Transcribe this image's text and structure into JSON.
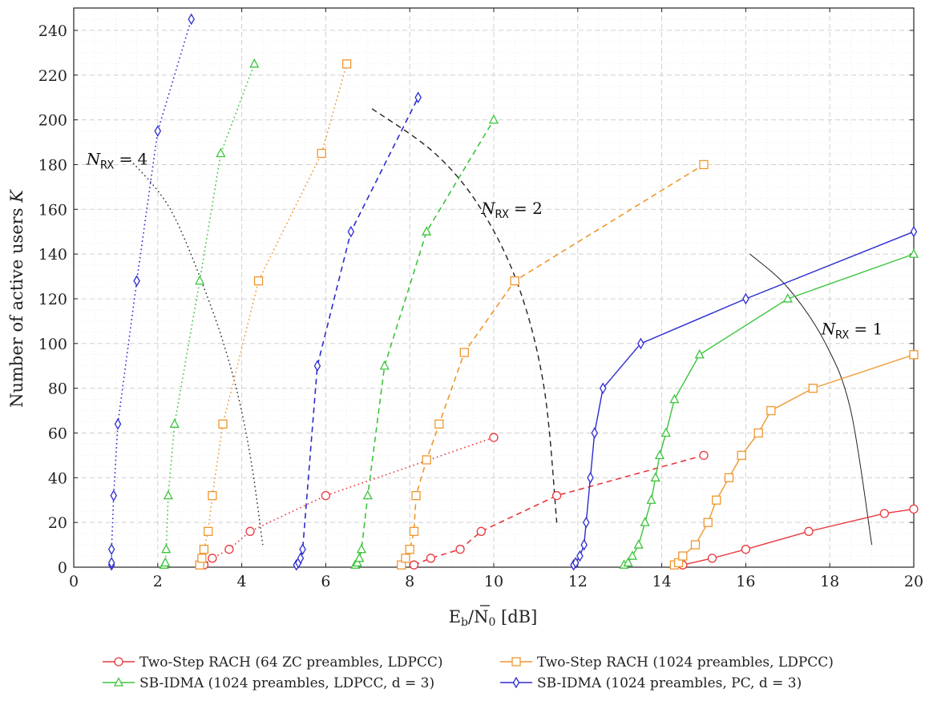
{
  "chart_data": {
    "type": "line",
    "xlabel": "Ē_b/N_0 [dB]",
    "ylabel": "Number of active users K",
    "xlim": [
      0,
      20
    ],
    "ylim": [
      0,
      250
    ],
    "x_ticks": [
      0,
      2,
      4,
      6,
      8,
      10,
      12,
      14,
      16,
      18,
      20
    ],
    "y_ticks": [
      0,
      20,
      40,
      60,
      80,
      100,
      120,
      140,
      160,
      180,
      200,
      220,
      240
    ],
    "grid": true,
    "legend_placement": "bottom",
    "colors": {
      "rach64": "#e8383d",
      "rach1024": "#f0962e",
      "sbidma_ldpc": "#3cc43c",
      "sbidma_pc": "#2b2bd0"
    },
    "legend": [
      {
        "label": "Two-Step RACH (64 ZC preambles, LDPCC)",
        "color": "#e8383d",
        "marker": "circle"
      },
      {
        "label": "Two-Step RACH (1024 preambles, LDPCC)",
        "color": "#f0962e",
        "marker": "square"
      },
      {
        "label": "SB-IDMA (1024 preambles, LDPCC, d = 3)",
        "color": "#3cc43c",
        "marker": "triangle"
      },
      {
        "label": "SB-IDMA (1024 preambles, PC, d = 3)",
        "color": "#2b2bd0",
        "marker": "diamond"
      }
    ],
    "annotations": [
      {
        "label": "N",
        "sub": "RX",
        "value": "= 4",
        "x": 0.3,
        "y": 180
      },
      {
        "label": "N",
        "sub": "RX",
        "value": "= 2",
        "x": 9.7,
        "y": 158
      },
      {
        "label": "N",
        "sub": "RX",
        "value": "= 1",
        "x": 17.8,
        "y": 104
      }
    ],
    "boundary_curves": [
      {
        "nrx": 4,
        "style": "dotted",
        "points": [
          [
            1.35,
            182
          ],
          [
            2.3,
            160
          ],
          [
            3.2,
            120
          ],
          [
            3.8,
            85
          ],
          [
            4.2,
            50
          ],
          [
            4.5,
            10
          ]
        ]
      },
      {
        "nrx": 2,
        "style": "dashed",
        "points": [
          [
            7.1,
            205
          ],
          [
            8.6,
            185
          ],
          [
            9.7,
            160
          ],
          [
            10.6,
            125
          ],
          [
            11.2,
            80
          ],
          [
            11.5,
            20
          ]
        ]
      },
      {
        "nrx": 1,
        "style": "solid",
        "points": [
          [
            16.1,
            140
          ],
          [
            17.0,
            125
          ],
          [
            17.9,
            100
          ],
          [
            18.5,
            70
          ],
          [
            19.0,
            10
          ]
        ]
      }
    ],
    "series": [
      {
        "name": "Two-Step RACH (64 ZC preambles, LDPCC)",
        "nrx": 1,
        "style": "solid",
        "color": "#e8383d",
        "marker": "circle",
        "points": [
          [
            14.5,
            1
          ],
          [
            15.2,
            4
          ],
          [
            16.0,
            8
          ],
          [
            17.5,
            16
          ],
          [
            19.3,
            24
          ],
          [
            20.0,
            26
          ]
        ]
      },
      {
        "name": "Two-Step RACH (64 ZC preambles, LDPCC)",
        "nrx": 2,
        "style": "dashed",
        "color": "#e8383d",
        "marker": "circle",
        "points": [
          [
            8.1,
            1
          ],
          [
            8.5,
            4
          ],
          [
            9.2,
            8
          ],
          [
            9.7,
            16
          ],
          [
            11.5,
            32
          ],
          [
            15.0,
            50
          ]
        ]
      },
      {
        "name": "Two-Step RACH (64 ZC preambles, LDPCC)",
        "nrx": 4,
        "style": "dotted",
        "color": "#e8383d",
        "marker": "circle",
        "points": [
          [
            3.1,
            1
          ],
          [
            3.3,
            4
          ],
          [
            3.7,
            8
          ],
          [
            4.2,
            16
          ],
          [
            6.0,
            32
          ],
          [
            10.0,
            58
          ]
        ]
      },
      {
        "name": "Two-Step RACH (1024 preambles, LDPCC)",
        "nrx": 1,
        "style": "solid",
        "color": "#f0962e",
        "marker": "square",
        "points": [
          [
            14.3,
            1
          ],
          [
            14.4,
            2
          ],
          [
            14.5,
            5
          ],
          [
            14.8,
            10
          ],
          [
            15.1,
            20
          ],
          [
            15.3,
            30
          ],
          [
            15.6,
            40
          ],
          [
            15.9,
            50
          ],
          [
            16.3,
            60
          ],
          [
            16.6,
            70
          ],
          [
            17.6,
            80
          ],
          [
            20.0,
            95
          ]
        ]
      },
      {
        "name": "Two-Step RACH (1024 preambles, LDPCC)",
        "nrx": 2,
        "style": "dashed",
        "color": "#f0962e",
        "marker": "square",
        "points": [
          [
            7.8,
            1
          ],
          [
            7.9,
            4
          ],
          [
            8.0,
            8
          ],
          [
            8.1,
            16
          ],
          [
            8.15,
            32
          ],
          [
            8.4,
            48
          ],
          [
            8.7,
            64
          ],
          [
            9.3,
            96
          ],
          [
            10.5,
            128
          ],
          [
            15.0,
            180
          ]
        ]
      },
      {
        "name": "Two-Step RACH (1024 preambles, LDPCC)",
        "nrx": 4,
        "style": "dotted",
        "color": "#f0962e",
        "marker": "square",
        "points": [
          [
            3.0,
            1
          ],
          [
            3.05,
            4
          ],
          [
            3.1,
            8
          ],
          [
            3.2,
            16
          ],
          [
            3.3,
            32
          ],
          [
            3.55,
            64
          ],
          [
            4.4,
            128
          ],
          [
            5.9,
            185
          ],
          [
            6.5,
            225
          ]
        ]
      },
      {
        "name": "SB-IDMA (1024 preambles, LDPCC, d = 3)",
        "nrx": 1,
        "style": "solid",
        "color": "#3cc43c",
        "marker": "triangle",
        "points": [
          [
            13.1,
            1
          ],
          [
            13.2,
            2
          ],
          [
            13.3,
            5
          ],
          [
            13.45,
            10
          ],
          [
            13.6,
            20
          ],
          [
            13.75,
            30
          ],
          [
            13.85,
            40
          ],
          [
            13.95,
            50
          ],
          [
            14.1,
            60
          ],
          [
            14.3,
            75
          ],
          [
            14.9,
            95
          ],
          [
            17.0,
            120
          ],
          [
            20.0,
            140
          ]
        ]
      },
      {
        "name": "SB-IDMA (1024 preambles, LDPCC, d = 3)",
        "nrx": 2,
        "style": "dashed",
        "color": "#3cc43c",
        "marker": "triangle",
        "points": [
          [
            6.7,
            1
          ],
          [
            6.75,
            2
          ],
          [
            6.8,
            4
          ],
          [
            6.85,
            8
          ],
          [
            7.0,
            32
          ],
          [
            7.4,
            90
          ],
          [
            8.4,
            150
          ],
          [
            10.0,
            200
          ]
        ]
      },
      {
        "name": "SB-IDMA (1024 preambles, LDPCC, d = 3)",
        "nrx": 4,
        "style": "dotted",
        "color": "#3cc43c",
        "marker": "triangle",
        "points": [
          [
            2.15,
            1
          ],
          [
            2.18,
            2
          ],
          [
            2.2,
            8
          ],
          [
            2.25,
            32
          ],
          [
            2.4,
            64
          ],
          [
            3.0,
            128
          ],
          [
            3.5,
            185
          ],
          [
            4.3,
            225
          ]
        ]
      },
      {
        "name": "SB-IDMA (1024 preambles, PC, d = 3)",
        "nrx": 1,
        "style": "solid",
        "color": "#2b2bd0",
        "marker": "diamond",
        "points": [
          [
            11.9,
            1
          ],
          [
            11.95,
            2
          ],
          [
            12.05,
            5
          ],
          [
            12.15,
            10
          ],
          [
            12.2,
            20
          ],
          [
            12.3,
            40
          ],
          [
            12.4,
            60
          ],
          [
            12.6,
            80
          ],
          [
            13.5,
            100
          ],
          [
            16.0,
            120
          ],
          [
            20.0,
            150
          ]
        ]
      },
      {
        "name": "SB-IDMA (1024 preambles, PC, d = 3)",
        "nrx": 2,
        "style": "dashed",
        "color": "#2b2bd0",
        "marker": "diamond",
        "points": [
          [
            5.3,
            1
          ],
          [
            5.35,
            2
          ],
          [
            5.4,
            4
          ],
          [
            5.45,
            8
          ],
          [
            5.8,
            90
          ],
          [
            6.6,
            150
          ],
          [
            8.2,
            210
          ]
        ]
      },
      {
        "name": "SB-IDMA (1024 preambles, PC, d = 3)",
        "nrx": 4,
        "style": "dotted",
        "color": "#2b2bd0",
        "marker": "diamond",
        "points": [
          [
            0.9,
            1
          ],
          [
            0.9,
            2
          ],
          [
            0.9,
            8
          ],
          [
            0.95,
            32
          ],
          [
            1.05,
            64
          ],
          [
            1.5,
            128
          ],
          [
            2.0,
            195
          ],
          [
            2.8,
            245
          ]
        ]
      }
    ]
  }
}
